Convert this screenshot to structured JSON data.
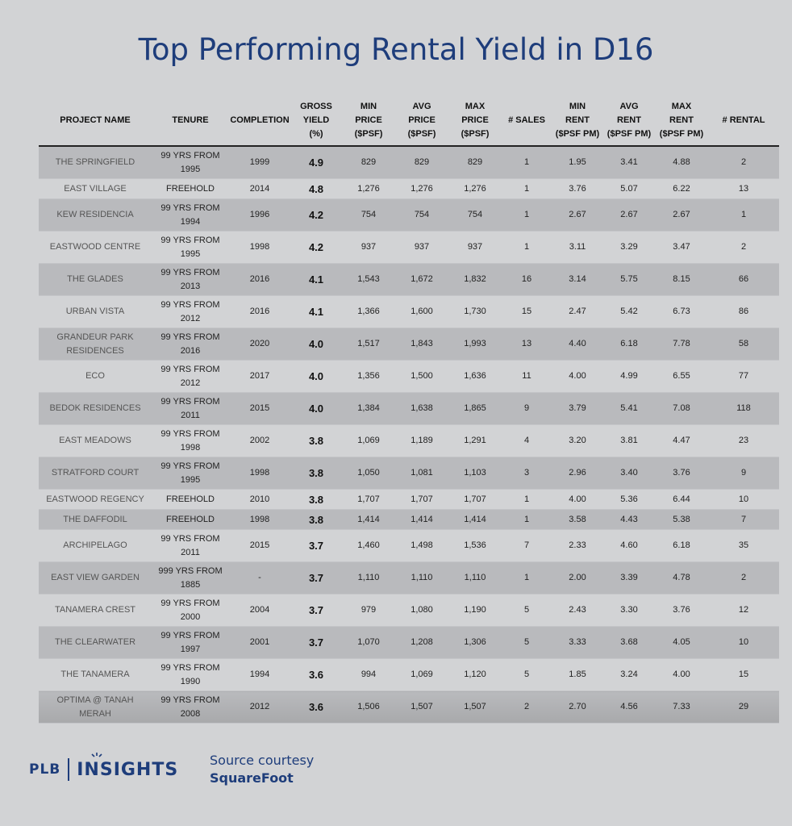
{
  "title": "Top Performing Rental Yield in D16",
  "headers": [
    [
      "PROJECT NAME"
    ],
    [
      "TENURE"
    ],
    [
      "COMPLETION"
    ],
    [
      "GROSS",
      "YIELD",
      "(%)"
    ],
    [
      "MIN",
      "PRICE",
      "($PSF)"
    ],
    [
      "AVG",
      "PRICE",
      "($PSF)"
    ],
    [
      "MAX",
      "PRICE",
      "($PSF)"
    ],
    [
      "# SALES"
    ],
    [
      "MIN",
      "RENT",
      "($PSF PM)"
    ],
    [
      "AVG",
      "RENT",
      "($PSF PM)"
    ],
    [
      "MAX",
      "RENT",
      "($PSF PM)"
    ],
    [
      "# RENTAL"
    ]
  ],
  "rows": [
    {
      "name": [
        "THE SPRINGFIELD"
      ],
      "tenure": [
        "99 YRS FROM",
        "1995"
      ],
      "completion": "1999",
      "yield": "4.9",
      "min_price": "829",
      "avg_price": "829",
      "max_price": "829",
      "sales": "1",
      "min_rent": "1.95",
      "avg_rent": "3.41",
      "max_rent": "4.88",
      "rental": "2"
    },
    {
      "name": [
        "EAST VILLAGE"
      ],
      "tenure": [
        "FREEHOLD"
      ],
      "completion": "2014",
      "yield": "4.8",
      "min_price": "1,276",
      "avg_price": "1,276",
      "max_price": "1,276",
      "sales": "1",
      "min_rent": "3.76",
      "avg_rent": "5.07",
      "max_rent": "6.22",
      "rental": "13"
    },
    {
      "name": [
        "KEW RESIDENCIA"
      ],
      "tenure": [
        "99 YRS FROM",
        "1994"
      ],
      "completion": "1996",
      "yield": "4.2",
      "min_price": "754",
      "avg_price": "754",
      "max_price": "754",
      "sales": "1",
      "min_rent": "2.67",
      "avg_rent": "2.67",
      "max_rent": "2.67",
      "rental": "1"
    },
    {
      "name": [
        "EASTWOOD CENTRE"
      ],
      "tenure": [
        "99 YRS FROM",
        "1995"
      ],
      "completion": "1998",
      "yield": "4.2",
      "min_price": "937",
      "avg_price": "937",
      "max_price": "937",
      "sales": "1",
      "min_rent": "3.11",
      "avg_rent": "3.29",
      "max_rent": "3.47",
      "rental": "2"
    },
    {
      "name": [
        "THE GLADES"
      ],
      "tenure": [
        "99 YRS FROM",
        "2013"
      ],
      "completion": "2016",
      "yield": "4.1",
      "min_price": "1,543",
      "avg_price": "1,672",
      "max_price": "1,832",
      "sales": "16",
      "min_rent": "3.14",
      "avg_rent": "5.75",
      "max_rent": "8.15",
      "rental": "66"
    },
    {
      "name": [
        "URBAN VISTA"
      ],
      "tenure": [
        "99 YRS FROM",
        "2012"
      ],
      "completion": "2016",
      "yield": "4.1",
      "min_price": "1,366",
      "avg_price": "1,600",
      "max_price": "1,730",
      "sales": "15",
      "min_rent": "2.47",
      "avg_rent": "5.42",
      "max_rent": "6.73",
      "rental": "86"
    },
    {
      "name": [
        "GRANDEUR PARK",
        "RESIDENCES"
      ],
      "tenure": [
        "99 YRS FROM",
        "2016"
      ],
      "completion": "2020",
      "yield": "4.0",
      "min_price": "1,517",
      "avg_price": "1,843",
      "max_price": "1,993",
      "sales": "13",
      "min_rent": "4.40",
      "avg_rent": "6.18",
      "max_rent": "7.78",
      "rental": "58"
    },
    {
      "name": [
        "ECO"
      ],
      "tenure": [
        "99 YRS FROM",
        "2012"
      ],
      "completion": "2017",
      "yield": "4.0",
      "min_price": "1,356",
      "avg_price": "1,500",
      "max_price": "1,636",
      "sales": "11",
      "min_rent": "4.00",
      "avg_rent": "4.99",
      "max_rent": "6.55",
      "rental": "77"
    },
    {
      "name": [
        "BEDOK RESIDENCES"
      ],
      "tenure": [
        "99 YRS FROM",
        "2011"
      ],
      "completion": "2015",
      "yield": "4.0",
      "min_price": "1,384",
      "avg_price": "1,638",
      "max_price": "1,865",
      "sales": "9",
      "min_rent": "3.79",
      "avg_rent": "5.41",
      "max_rent": "7.08",
      "rental": "118"
    },
    {
      "name": [
        "EAST MEADOWS"
      ],
      "tenure": [
        "99 YRS FROM",
        "1998"
      ],
      "completion": "2002",
      "yield": "3.8",
      "min_price": "1,069",
      "avg_price": "1,189",
      "max_price": "1,291",
      "sales": "4",
      "min_rent": "3.20",
      "avg_rent": "3.81",
      "max_rent": "4.47",
      "rental": "23"
    },
    {
      "name": [
        "STRATFORD COURT"
      ],
      "tenure": [
        "99 YRS FROM",
        "1995"
      ],
      "completion": "1998",
      "yield": "3.8",
      "min_price": "1,050",
      "avg_price": "1,081",
      "max_price": "1,103",
      "sales": "3",
      "min_rent": "2.96",
      "avg_rent": "3.40",
      "max_rent": "3.76",
      "rental": "9"
    },
    {
      "name": [
        "EASTWOOD REGENCY"
      ],
      "tenure": [
        "FREEHOLD"
      ],
      "completion": "2010",
      "yield": "3.8",
      "min_price": "1,707",
      "avg_price": "1,707",
      "max_price": "1,707",
      "sales": "1",
      "min_rent": "4.00",
      "avg_rent": "5.36",
      "max_rent": "6.44",
      "rental": "10"
    },
    {
      "name": [
        "THE DAFFODIL"
      ],
      "tenure": [
        "FREEHOLD"
      ],
      "completion": "1998",
      "yield": "3.8",
      "min_price": "1,414",
      "avg_price": "1,414",
      "max_price": "1,414",
      "sales": "1",
      "min_rent": "3.58",
      "avg_rent": "4.43",
      "max_rent": "5.38",
      "rental": "7"
    },
    {
      "name": [
        "ARCHIPELAGO"
      ],
      "tenure": [
        "99 YRS FROM",
        "2011"
      ],
      "completion": "2015",
      "yield": "3.7",
      "min_price": "1,460",
      "avg_price": "1,498",
      "max_price": "1,536",
      "sales": "7",
      "min_rent": "2.33",
      "avg_rent": "4.60",
      "max_rent": "6.18",
      "rental": "35"
    },
    {
      "name": [
        "EAST VIEW GARDEN"
      ],
      "tenure": [
        "999 YRS FROM",
        "1885"
      ],
      "completion": "-",
      "yield": "3.7",
      "min_price": "1,110",
      "avg_price": "1,110",
      "max_price": "1,110",
      "sales": "1",
      "min_rent": "2.00",
      "avg_rent": "3.39",
      "max_rent": "4.78",
      "rental": "2"
    },
    {
      "name": [
        "TANAMERA CREST"
      ],
      "tenure": [
        "99 YRS FROM",
        "2000"
      ],
      "completion": "2004",
      "yield": "3.7",
      "min_price": "979",
      "avg_price": "1,080",
      "max_price": "1,190",
      "sales": "5",
      "min_rent": "2.43",
      "avg_rent": "3.30",
      "max_rent": "3.76",
      "rental": "12"
    },
    {
      "name": [
        "THE CLEARWATER"
      ],
      "tenure": [
        "99 YRS FROM",
        "1997"
      ],
      "completion": "2001",
      "yield": "3.7",
      "min_price": "1,070",
      "avg_price": "1,208",
      "max_price": "1,306",
      "sales": "5",
      "min_rent": "3.33",
      "avg_rent": "3.68",
      "max_rent": "4.05",
      "rental": "10"
    },
    {
      "name": [
        "THE TANAMERA"
      ],
      "tenure": [
        "99 YRS FROM",
        "1990"
      ],
      "completion": "1994",
      "yield": "3.6",
      "min_price": "994",
      "avg_price": "1,069",
      "max_price": "1,120",
      "sales": "5",
      "min_rent": "1.85",
      "avg_rent": "3.24",
      "max_rent": "4.00",
      "rental": "15"
    },
    {
      "name": [
        "OPTIMA @ TANAH",
        "MERAH"
      ],
      "tenure": [
        "99 YRS FROM",
        "2008"
      ],
      "completion": "2012",
      "yield": "3.6",
      "min_price": "1,506",
      "avg_price": "1,507",
      "max_price": "1,507",
      "sales": "2",
      "min_rent": "2.70",
      "avg_rent": "4.56",
      "max_rent": "7.33",
      "rental": "29"
    }
  ],
  "footer": {
    "logo_left": "PLB",
    "logo_right": "INSIGHTS",
    "source_line1": "Source courtesy",
    "source_line2": "SquareFoot"
  },
  "colors": {
    "brand": "#1e3d7b",
    "row_dark": "#b9babd",
    "background": "#d2d3d5"
  }
}
